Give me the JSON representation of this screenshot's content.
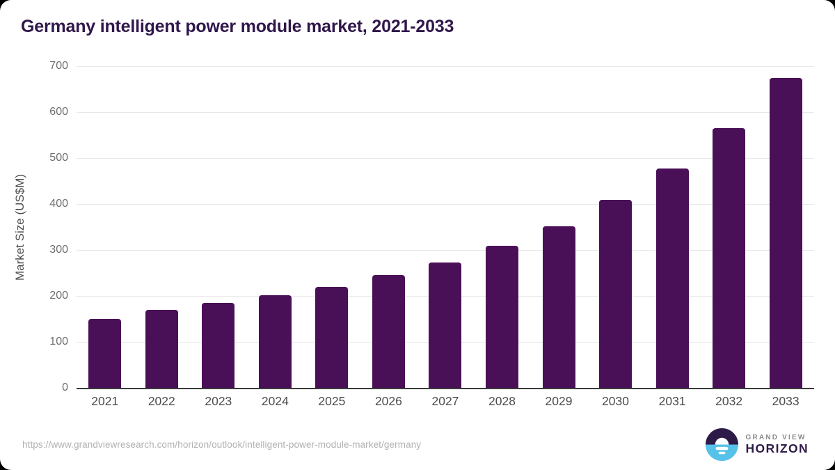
{
  "title": "Germany intelligent power module market, 2021-2033",
  "colors": {
    "bar": "#4a1057",
    "brand_purple": "#2e1a47",
    "title_purple": "#30174b",
    "logo_blue": "#56c2e9",
    "logo_white": "#ffffff"
  },
  "chart_data": {
    "type": "bar",
    "title": "Germany intelligent power module market, 2021-2033",
    "categories": [
      "2021",
      "2022",
      "2023",
      "2024",
      "2025",
      "2026",
      "2027",
      "2028",
      "2029",
      "2030",
      "2031",
      "2032",
      "2033"
    ],
    "values": [
      150,
      170,
      185,
      201,
      220,
      245,
      272,
      309,
      352,
      409,
      478,
      565,
      675
    ],
    "xlabel": "",
    "ylabel": "Market Size (US$M)",
    "ylim": [
      0,
      700
    ],
    "ytick_step": 100,
    "grid": true,
    "legend": "none",
    "bar_color": "#4a1057"
  },
  "footer": {
    "source_url": "https://www.grandviewresearch.com/horizon/outlook/intelligent-power-module-market/germany",
    "logo": {
      "line1": "GRAND VIEW",
      "line2": "HORIZON",
      "icon": "horizon-sunset-icon"
    }
  }
}
